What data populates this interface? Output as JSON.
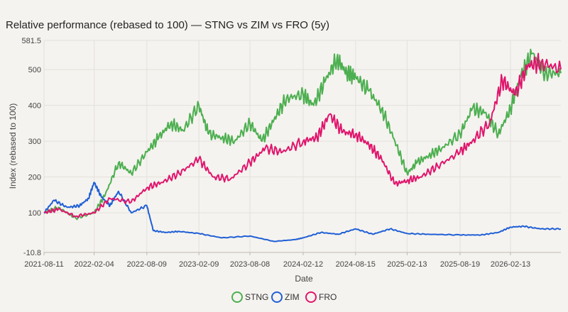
{
  "chart_data": {
    "type": "line",
    "title": "Relative performance (rebased to 100) — STNG vs ZIM vs FRO (5y)",
    "xlabel": "Date",
    "ylabel": "Index (rebased to 100)",
    "ylim": [
      -10.8,
      581.5
    ],
    "yticks": [
      {
        "value": 581.5,
        "label": "581.5"
      },
      {
        "value": 500,
        "label": "500"
      },
      {
        "value": 400,
        "label": "400"
      },
      {
        "value": 300,
        "label": "300"
      },
      {
        "value": 200,
        "label": "200"
      },
      {
        "value": 100,
        "label": "100"
      },
      {
        "value": -10.8,
        "label": "-10.8"
      }
    ],
    "xlim": [
      "2021-08-11",
      "2026-08-10"
    ],
    "xticks": [
      "2021-08-11",
      "2022-02-04",
      "2022-08-09",
      "2023-02-09",
      "2023-08-08",
      "2024-02-12",
      "2024-08-15",
      "2025-02-13",
      "2025-08-19",
      "2026-02-13"
    ],
    "grid": true,
    "legend": "bottom-center",
    "series": [
      {
        "name": "STNG",
        "color": "#4caf50",
        "x": [
          "2021-08-11",
          "2021-10-01",
          "2021-12-01",
          "2022-02-04",
          "2022-03-15",
          "2022-05-01",
          "2022-06-15",
          "2022-08-09",
          "2022-09-20",
          "2022-11-01",
          "2022-12-15",
          "2023-02-09",
          "2023-03-15",
          "2023-05-01",
          "2023-06-15",
          "2023-08-08",
          "2023-09-20",
          "2023-11-01",
          "2023-12-15",
          "2024-02-12",
          "2024-03-20",
          "2024-05-01",
          "2024-06-10",
          "2024-07-15",
          "2024-08-15",
          "2024-10-01",
          "2024-11-15",
          "2025-01-01",
          "2025-02-13",
          "2025-03-20",
          "2025-05-01",
          "2025-06-15",
          "2025-08-19",
          "2025-10-01",
          "2025-11-15",
          "2026-01-01",
          "2026-02-13",
          "2026-03-20",
          "2026-05-01",
          "2026-06-15",
          "2026-08-10"
        ],
        "y": [
          100,
          115,
          85,
          100,
          150,
          240,
          210,
          270,
          310,
          350,
          330,
          400,
          320,
          310,
          300,
          350,
          300,
          360,
          420,
          430,
          400,
          470,
          530,
          490,
          480,
          440,
          390,
          300,
          210,
          240,
          260,
          280,
          320,
          390,
          380,
          320,
          390,
          480,
          545,
          490,
          490
        ]
      },
      {
        "name": "ZIM",
        "color": "#1f5fd6",
        "x": [
          "2021-08-11",
          "2021-09-15",
          "2021-11-01",
          "2021-12-15",
          "2022-01-15",
          "2022-02-04",
          "2022-03-01",
          "2022-04-01",
          "2022-05-01",
          "2022-06-15",
          "2022-08-09",
          "2022-09-01",
          "2022-10-15",
          "2022-12-01",
          "2023-02-09",
          "2023-05-01",
          "2023-08-08",
          "2023-11-01",
          "2024-01-15",
          "2024-02-12",
          "2024-04-15",
          "2024-06-15",
          "2024-08-15",
          "2024-10-15",
          "2024-12-15",
          "2025-02-13",
          "2025-05-01",
          "2025-08-19",
          "2025-11-01",
          "2026-01-01",
          "2026-02-13",
          "2026-04-01",
          "2026-06-01",
          "2026-08-10"
        ],
        "y": [
          100,
          135,
          115,
          120,
          140,
          185,
          145,
          120,
          160,
          100,
          120,
          50,
          45,
          48,
          42,
          30,
          35,
          20,
          25,
          30,
          45,
          40,
          55,
          40,
          55,
          42,
          40,
          38,
          38,
          45,
          60,
          62,
          55,
          55
        ]
      },
      {
        "name": "FRO",
        "color": "#e0156d",
        "x": [
          "2021-08-11",
          "2021-10-01",
          "2021-12-01",
          "2022-02-04",
          "2022-04-01",
          "2022-06-15",
          "2022-08-09",
          "2022-10-01",
          "2022-12-01",
          "2023-02-09",
          "2023-04-01",
          "2023-06-01",
          "2023-08-08",
          "2023-10-01",
          "2023-12-01",
          "2024-02-12",
          "2024-04-01",
          "2024-05-15",
          "2024-07-01",
          "2024-08-15",
          "2024-10-01",
          "2024-11-15",
          "2025-01-01",
          "2025-02-13",
          "2025-04-01",
          "2025-06-01",
          "2025-08-19",
          "2025-10-01",
          "2025-12-01",
          "2026-01-15",
          "2026-03-01",
          "2026-04-15",
          "2026-06-01",
          "2026-08-10"
        ],
        "y": [
          100,
          110,
          90,
          100,
          140,
          130,
          170,
          185,
          210,
          250,
          200,
          195,
          240,
          280,
          270,
          300,
          310,
          375,
          325,
          320,
          290,
          250,
          180,
          190,
          200,
          230,
          270,
          300,
          350,
          470,
          430,
          510,
          520,
          500
        ]
      }
    ]
  }
}
